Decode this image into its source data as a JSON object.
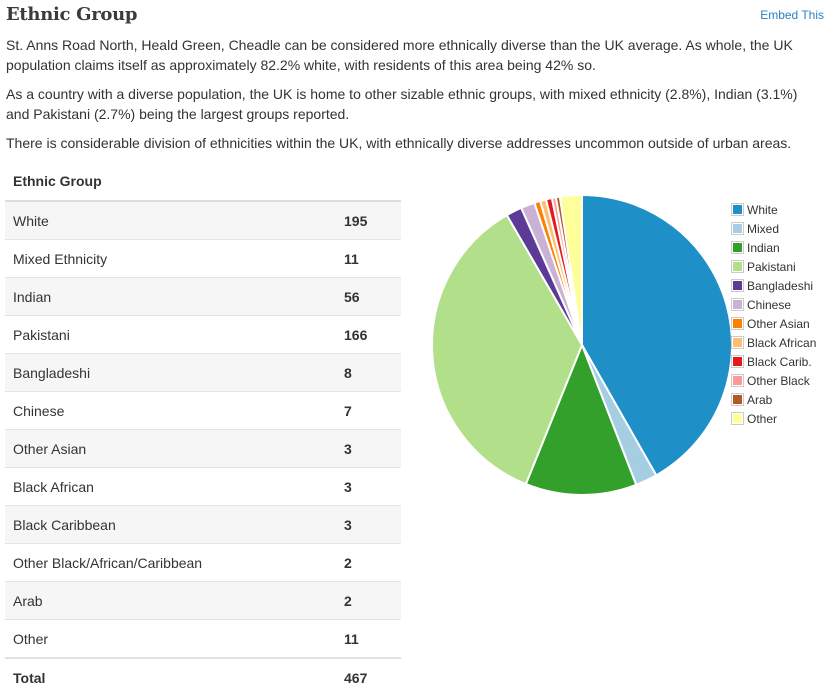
{
  "header": {
    "title": "Ethnic Group",
    "embed_label": "Embed This"
  },
  "intro": {
    "p1": "St. Anns Road North, Heald Green, Cheadle can be considered more ethnically diverse than the UK average. As whole, the UK population claims itself as approximately 82.2% white, with residents of this area being 42% so.",
    "p2": "As a country with a diverse population, the UK is home to other sizable ethnic groups, with mixed ethnicity (2.8%), Indian (3.1%) and Pakistani (2.7%) being the largest groups reported.",
    "p3": "There is considerable division of ethnicities within the UK, with ethnically diverse addresses uncommon outside of urban areas."
  },
  "table": {
    "header": "Ethnic Group",
    "rows": [
      {
        "label": "White",
        "value": "195"
      },
      {
        "label": "Mixed Ethnicity",
        "value": "11"
      },
      {
        "label": "Indian",
        "value": "56"
      },
      {
        "label": "Pakistani",
        "value": "166"
      },
      {
        "label": "Bangladeshi",
        "value": "8"
      },
      {
        "label": "Chinese",
        "value": "7"
      },
      {
        "label": "Other Asian",
        "value": "3"
      },
      {
        "label": "Black African",
        "value": "3"
      },
      {
        "label": "Black Caribbean",
        "value": "3"
      },
      {
        "label": "Other Black/African/Caribbean",
        "value": "2"
      },
      {
        "label": "Arab",
        "value": "2"
      },
      {
        "label": "Other",
        "value": "11"
      }
    ],
    "total_label": "Total",
    "total_value": "467"
  },
  "chart_data": {
    "type": "pie",
    "categories": [
      "White",
      "Mixed",
      "Indian",
      "Pakistani",
      "Bangladeshi",
      "Chinese",
      "Other Asian",
      "Black African",
      "Black Carib.",
      "Other Black",
      "Arab",
      "Other"
    ],
    "values": [
      195,
      11,
      56,
      166,
      8,
      7,
      3,
      3,
      3,
      2,
      2,
      11
    ],
    "colors": [
      "#1f8fc8",
      "#a6cee3",
      "#33a02c",
      "#b2df8a",
      "#5b3b96",
      "#cab2d6",
      "#ff7f00",
      "#fdbf6f",
      "#e31a1c",
      "#fb9a99",
      "#b15928",
      "#ffff99"
    ],
    "legend_position": "right"
  }
}
